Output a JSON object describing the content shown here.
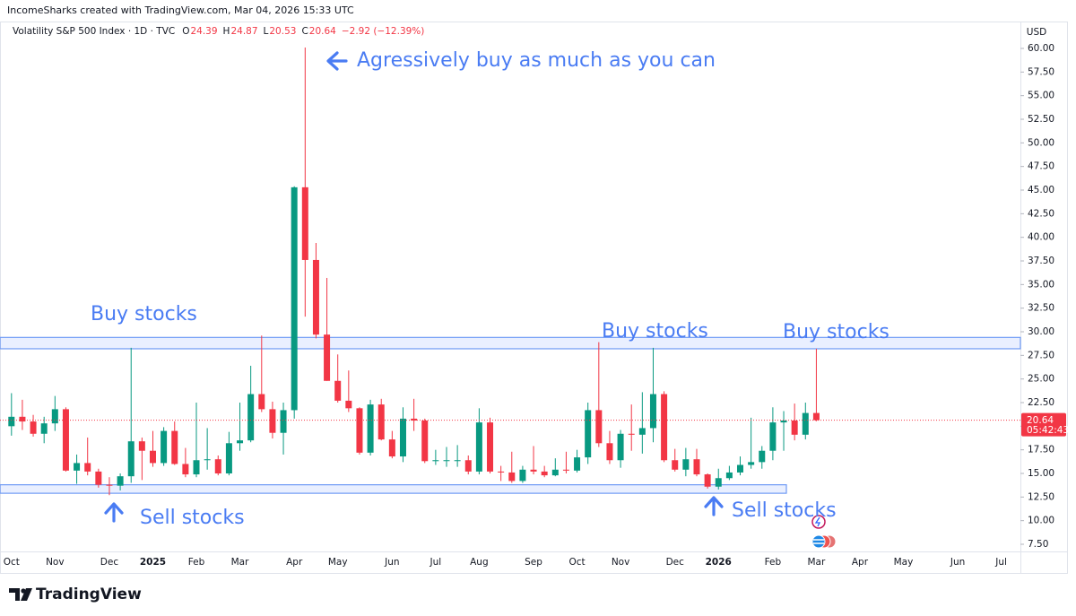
{
  "header": {
    "attribution": "IncomeSharks created with TradingView.com, Mar 04, 2026 15:33 UTC"
  },
  "chart_data": {
    "type": "candlestick",
    "title": "Volatility S&P 500 Index · 1D · TVC",
    "ohlc_legend": [
      {
        "label": "O",
        "value": 24.39
      },
      {
        "label": "H",
        "value": 24.87
      },
      {
        "label": "L",
        "value": 20.53
      },
      {
        "label": "C",
        "value": 20.64
      }
    ],
    "change": "−2.92 (−12.39%)",
    "currency": "USD",
    "categories": [
      "Oct",
      null,
      null,
      null,
      "Nov",
      null,
      null,
      null,
      null,
      "Dec",
      null,
      null,
      null,
      "2025",
      null,
      null,
      null,
      "Feb",
      null,
      null,
      null,
      "Mar",
      null,
      null,
      null,
      null,
      "Apr",
      null,
      null,
      null,
      "May",
      null,
      null,
      null,
      null,
      "Jun",
      null,
      null,
      null,
      "Jul",
      null,
      null,
      null,
      "Aug",
      null,
      null,
      null,
      null,
      "Sep",
      null,
      null,
      null,
      "Oct",
      null,
      null,
      null,
      "Nov",
      null,
      null,
      null,
      null,
      "Dec",
      null,
      null,
      null,
      "2026",
      null,
      null,
      null,
      null,
      "Feb",
      null,
      null,
      null,
      "Mar",
      null,
      null,
      null,
      "Apr",
      null,
      null,
      null,
      "May",
      null,
      null,
      null,
      null,
      "Jun",
      null,
      null,
      null,
      "Jul",
      null
    ],
    "open": [
      20,
      21,
      20.5,
      19.2,
      20.3,
      21.8,
      15.3,
      16.1,
      15.2,
      13.8,
      13.7,
      14.7,
      18.4,
      17.4,
      16.1,
      19.5,
      16,
      14.9,
      16.4,
      16.5,
      15,
      18.2,
      18.5,
      23.4,
      21.8,
      19.3,
      21.7,
      45.3,
      37.6,
      29.7,
      24.8,
      22.7,
      21.9,
      17.2,
      22.3,
      18.6,
      16.8,
      20.8,
      20.6,
      16.3,
      16.4,
      16.4,
      16.4,
      15.2,
      20.4,
      15.2,
      15.1,
      14.2,
      15.4,
      15.2,
      14.8,
      15.4,
      15.3,
      16.7,
      21.7,
      18.2,
      16.4,
      19.2,
      19.1,
      19.8,
      23.4,
      16.4,
      15.4,
      16.5,
      14.9,
      13.6,
      14.5,
      15.1,
      15.9,
      16.2,
      17.4,
      20.4,
      20.6,
      19.1,
      21.4,
      null,
      null,
      null,
      null,
      null,
      null,
      null,
      null,
      null,
      null,
      null,
      null,
      null,
      null,
      null,
      null,
      null,
      null
    ],
    "high": [
      23.5,
      22.8,
      21.2,
      21,
      23.2,
      22,
      17,
      18.8,
      15.5,
      14.6,
      15,
      28.3,
      18.8,
      19.5,
      19.9,
      20.5,
      17.7,
      22.5,
      19.8,
      16.9,
      19.4,
      22.5,
      26.4,
      29.6,
      22.6,
      22.5,
      45.4,
      60.1,
      39.4,
      35.7,
      27.6,
      25.9,
      22,
      22.8,
      22.9,
      19.5,
      22,
      22.9,
      20.8,
      17.5,
      17.8,
      18,
      16.9,
      21.9,
      20.9,
      15.8,
      17.3,
      15.8,
      17.9,
      15.8,
      16.6,
      17.3,
      17.5,
      22.5,
      28.9,
      19.5,
      19.6,
      22.3,
      23.6,
      28.3,
      23.7,
      17.6,
      17.7,
      17.6,
      15,
      15.5,
      15.8,
      16.8,
      20.9,
      17.9,
      22,
      21.6,
      22.4,
      22.5,
      28.2,
      null,
      null,
      null,
      null,
      null,
      null,
      null,
      null,
      null,
      null,
      null,
      null,
      null,
      null,
      null,
      null,
      null,
      null
    ],
    "low": [
      19,
      19.6,
      18.9,
      18.2,
      19.5,
      15.2,
      13.9,
      14.8,
      13.5,
      12.7,
      13.2,
      14,
      14.3,
      15.7,
      15.8,
      15.9,
      14.6,
      14.6,
      15.4,
      14.8,
      14.8,
      17.4,
      18.3,
      21.5,
      18.7,
      17,
      20.8,
      31.6,
      29.3,
      24.8,
      22.5,
      21.5,
      17,
      16.9,
      18.5,
      16.6,
      16.2,
      19.5,
      16.1,
      15.9,
      15.7,
      15.7,
      14.9,
      14.9,
      15,
      14.2,
      14,
      14,
      14.9,
      14.6,
      14.7,
      15,
      15.1,
      16,
      17.8,
      16,
      15.6,
      17.4,
      17.1,
      18.3,
      16.2,
      15.2,
      14.7,
      14.7,
      13.4,
      13.3,
      14.3,
      14.8,
      15.5,
      15.5,
      16.4,
      17.4,
      18.5,
      18.6,
      20.53,
      null,
      null,
      null,
      null,
      null,
      null,
      null,
      null,
      null,
      null,
      null,
      null,
      null,
      null,
      null,
      null,
      null,
      null
    ],
    "close": [
      21,
      20.5,
      19.2,
      20.3,
      21.8,
      15.3,
      16.1,
      15.2,
      13.8,
      13.7,
      14.7,
      18.4,
      17.4,
      16.1,
      19.5,
      16,
      14.9,
      16.4,
      16.5,
      15,
      18.2,
      18.5,
      23.4,
      21.8,
      19.3,
      21.7,
      45.3,
      37.6,
      29.7,
      24.8,
      22.7,
      21.9,
      17.2,
      22.3,
      18.6,
      16.8,
      20.8,
      20.6,
      16.3,
      16.4,
      16.4,
      16.4,
      15.2,
      20.4,
      15.2,
      15.1,
      14.2,
      15.4,
      15.2,
      14.8,
      15.4,
      15.3,
      16.7,
      21.7,
      18.2,
      16.4,
      19.2,
      19.1,
      19.8,
      23.4,
      16.4,
      15.4,
      16.5,
      14.9,
      13.6,
      14.5,
      15.1,
      15.9,
      16.2,
      17.4,
      20.4,
      20.6,
      19.1,
      21.4,
      20.64,
      null,
      null,
      null,
      null,
      null,
      null,
      null,
      null,
      null,
      null,
      null,
      null,
      null,
      null,
      null,
      null,
      null,
      null
    ],
    "up_color": "#089981",
    "down_color": "#f23645",
    "ylim": [
      6.74,
      62.47
    ],
    "yticks": [
      {
        "value": 7.5,
        "label": "7.50"
      },
      {
        "value": 10,
        "label": "10.00"
      },
      {
        "value": 12.5,
        "label": "12.50"
      },
      {
        "value": 15,
        "label": "15.00"
      },
      {
        "value": 17.5,
        "label": "17.50"
      },
      {
        "value": 20,
        "label": "20.00"
      },
      {
        "value": 22.5,
        "label": "22.50"
      },
      {
        "value": 25,
        "label": "25.00"
      },
      {
        "value": 27.5,
        "label": "27.50"
      },
      {
        "value": 30,
        "label": "30.00"
      },
      {
        "value": 32.5,
        "label": "32.50"
      },
      {
        "value": 35,
        "label": "35.00"
      },
      {
        "value": 37.5,
        "label": "37.50"
      },
      {
        "value": 40,
        "label": "40.00"
      },
      {
        "value": 42.5,
        "label": "42.50"
      },
      {
        "value": 45,
        "label": "45.00"
      },
      {
        "value": 47.5,
        "label": "47.50"
      },
      {
        "value": 50,
        "label": "50.00"
      },
      {
        "value": 52.5,
        "label": "52.50"
      },
      {
        "value": 55,
        "label": "55.00"
      },
      {
        "value": 57.5,
        "label": "57.50"
      },
      {
        "value": 60,
        "label": "60.00"
      }
    ],
    "grid": false,
    "last_price": 20.64,
    "countdown": "05:42:43",
    "zones": [
      {
        "low": 28.2,
        "high": 29.4
      },
      {
        "low": 12.9,
        "high": 13.8
      }
    ],
    "annotations": [
      {
        "text": "Agressively buy as much as you can"
      },
      {
        "text": "Buy stocks"
      },
      {
        "text": "Buy stocks"
      },
      {
        "text": "Buy stocks"
      },
      {
        "text": "Sell stocks"
      },
      {
        "text": "Sell stocks"
      }
    ]
  },
  "footer": {
    "brand": "TradingView"
  }
}
